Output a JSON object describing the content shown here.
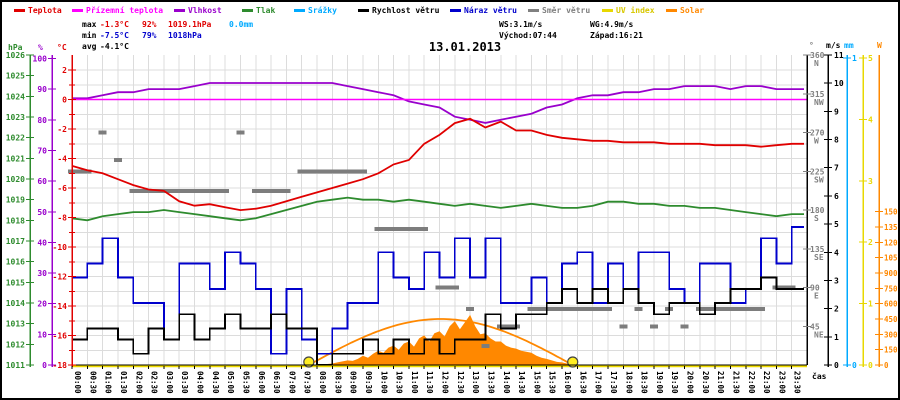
{
  "title": "13.01.2013",
  "legend": [
    {
      "id": "temperature",
      "label": "Teplota",
      "color": "#e00000"
    },
    {
      "id": "ground-temperature",
      "label": "Přízemní teplota",
      "color": "#ff00ff"
    },
    {
      "id": "humidity",
      "label": "Vlhkost",
      "color": "#9900cc"
    },
    {
      "id": "pressure",
      "label": "Tlak",
      "color": "#2e8b2e"
    },
    {
      "id": "precipitation",
      "label": "Srážky",
      "color": "#00aaff"
    },
    {
      "id": "wind-speed",
      "label": "Rychlost větru",
      "color": "#000000"
    },
    {
      "id": "wind-gust",
      "label": "Náraz větru",
      "color": "#0000cc"
    },
    {
      "id": "wind-direction",
      "label": "Směr větru",
      "color": "#808080"
    },
    {
      "id": "uv-index",
      "label": "UV index",
      "color": "#e8d800"
    },
    {
      "id": "solar",
      "label": "Solar",
      "color": "#ff8800"
    }
  ],
  "stats": {
    "max_label": "max",
    "max_temp": "-1.3°C",
    "max_hum": "92%",
    "max_pres": "1019.1hPa",
    "rain_total": "0.0mm",
    "min_label": "min",
    "min_temp": "-7.5°C",
    "min_hum": "79%",
    "min_pres": "1018hPa",
    "avg_label": "avg",
    "avg_temp": "-4.1°C",
    "ws": "WS:3.1m/s",
    "wg": "WG:4.9m/s",
    "sunrise": "Východ:07:44",
    "sunset": "Západ:16:21"
  },
  "xaxis_label": "čas",
  "axes": {
    "pressure": {
      "unit": "hPa",
      "color": "#2e8b2e",
      "min": 1011,
      "max": 1026,
      "step": 1
    },
    "humidity": {
      "unit": "%",
      "color": "#9900cc",
      "min": 0,
      "max": 100,
      "step": 10
    },
    "temperature": {
      "unit": "°C",
      "color": "#e00000",
      "min": -18,
      "max": 2,
      "label_step": 2
    },
    "direction": {
      "unit": "°",
      "color": "#808080",
      "ticks": [
        {
          "deg": 360,
          "name": "N"
        },
        {
          "deg": 315,
          "name": "NW"
        },
        {
          "deg": 270,
          "name": "W"
        },
        {
          "deg": 225,
          "name": "SW"
        },
        {
          "deg": 180,
          "name": "S"
        },
        {
          "deg": 135,
          "name": "SE"
        },
        {
          "deg": 90,
          "name": "E"
        },
        {
          "deg": 45,
          "name": "NE"
        }
      ]
    },
    "wind": {
      "unit": "m/s",
      "color": "#000000",
      "min": 0,
      "max": 11,
      "step": 1
    },
    "rain": {
      "unit": "mm",
      "color": "#00aaff",
      "min": 0,
      "max": 1,
      "step": 1
    },
    "uv": {
      "unit": "",
      "color": "#e8d800",
      "min": 0,
      "max": 5,
      "step": 1
    },
    "solar": {
      "unit": "W",
      "color": "#ff8800",
      "min": 0,
      "max": 1500,
      "step": 150
    }
  },
  "chart_data": {
    "type": "line",
    "x": [
      "00:00",
      "00:30",
      "01:00",
      "01:30",
      "02:00",
      "02:30",
      "03:00",
      "03:30",
      "04:00",
      "04:30",
      "05:00",
      "05:30",
      "06:00",
      "06:30",
      "07:00",
      "07:30",
      "08:00",
      "08:30",
      "09:00",
      "09:30",
      "10:00",
      "10:30",
      "11:00",
      "11:30",
      "12:00",
      "12:30",
      "13:00",
      "13:30",
      "14:00",
      "14:30",
      "15:00",
      "15:30",
      "16:00",
      "16:30",
      "17:00",
      "17:30",
      "18:00",
      "18:30",
      "19:00",
      "19:30",
      "20:00",
      "20:30",
      "21:00",
      "21:30",
      "22:00",
      "22:30",
      "23:00",
      "23:30"
    ],
    "series": [
      {
        "name": "Teplota",
        "unit": "°C",
        "values": [
          -4.5,
          -4.8,
          -5.0,
          -5.4,
          -5.8,
          -6.1,
          -6.2,
          -6.9,
          -7.2,
          -7.1,
          -7.3,
          -7.5,
          -7.4,
          -7.2,
          -6.9,
          -6.6,
          -6.3,
          -6.0,
          -5.7,
          -5.4,
          -5.0,
          -4.4,
          -4.1,
          -3.0,
          -2.4,
          -1.6,
          -1.3,
          -1.9,
          -1.5,
          -2.1,
          -2.1,
          -2.4,
          -2.6,
          -2.7,
          -2.8,
          -2.8,
          -2.9,
          -2.9,
          -2.9,
          -3.0,
          -3.0,
          -3.0,
          -3.1,
          -3.1,
          -3.1,
          -3.2,
          -3.1,
          -3.0
        ]
      },
      {
        "name": "Přízemní teplota",
        "unit": "°C",
        "constant": 0.0
      },
      {
        "name": "Vlhkost",
        "unit": "%",
        "values": [
          87,
          87,
          88,
          89,
          89,
          90,
          90,
          90,
          91,
          92,
          92,
          92,
          92,
          92,
          92,
          92,
          92,
          92,
          91,
          90,
          89,
          88,
          86,
          85,
          84,
          81,
          80,
          79,
          80,
          81,
          82,
          84,
          85,
          87,
          88,
          88,
          89,
          89,
          90,
          90,
          91,
          91,
          91,
          90,
          91,
          91,
          90,
          90
        ]
      },
      {
        "name": "Tlak",
        "unit": "hPa",
        "values": [
          1018.1,
          1018.0,
          1018.2,
          1018.3,
          1018.4,
          1018.4,
          1018.5,
          1018.4,
          1018.3,
          1018.2,
          1018.1,
          1018.0,
          1018.1,
          1018.3,
          1018.5,
          1018.7,
          1018.9,
          1019.0,
          1019.1,
          1019.0,
          1019.0,
          1018.9,
          1019.0,
          1018.9,
          1018.8,
          1018.7,
          1018.8,
          1018.7,
          1018.6,
          1018.7,
          1018.8,
          1018.7,
          1018.6,
          1018.6,
          1018.7,
          1018.9,
          1018.9,
          1018.8,
          1018.8,
          1018.7,
          1018.7,
          1018.6,
          1018.6,
          1018.5,
          1018.4,
          1018.3,
          1018.2,
          1018.3
        ]
      },
      {
        "name": "Srážky",
        "unit": "mm",
        "constant": 0.0
      },
      {
        "name": "Rychlost větru",
        "unit": "m/s",
        "values": [
          0.9,
          1.3,
          1.3,
          0.9,
          0.4,
          1.3,
          0.9,
          1.8,
          0.9,
          1.3,
          1.8,
          1.3,
          1.3,
          1.8,
          1.3,
          1.3,
          0.0,
          0.4,
          0.4,
          0.9,
          0.4,
          0.9,
          0.4,
          0.9,
          0.4,
          0.9,
          0.9,
          1.8,
          1.3,
          1.8,
          1.8,
          2.2,
          2.7,
          2.2,
          2.7,
          2.2,
          2.7,
          2.2,
          1.8,
          2.2,
          2.2,
          1.8,
          2.2,
          2.7,
          2.7,
          3.1,
          2.7,
          2.7
        ]
      },
      {
        "name": "Náraz větru",
        "unit": "m/s",
        "values": [
          3.1,
          3.6,
          4.5,
          3.1,
          2.2,
          2.2,
          0.9,
          3.6,
          3.6,
          2.7,
          4.0,
          3.6,
          2.7,
          0.4,
          2.7,
          0.9,
          0.4,
          1.3,
          2.2,
          2.2,
          4.0,
          3.1,
          2.7,
          4.0,
          3.1,
          4.5,
          3.1,
          4.5,
          2.2,
          2.2,
          3.1,
          2.2,
          3.6,
          4.0,
          2.2,
          3.6,
          2.7,
          4.0,
          4.0,
          2.7,
          2.2,
          3.6,
          3.6,
          2.2,
          2.7,
          4.5,
          3.6,
          4.9
        ]
      },
      {
        "name": "Směr větru",
        "unit": "°",
        "values": [
          225,
          225,
          270,
          238,
          202,
          202,
          202,
          202,
          202,
          202,
          202,
          270,
          202,
          202,
          202,
          225,
          225,
          225,
          225,
          225,
          158,
          158,
          158,
          158,
          90,
          90,
          65,
          22,
          45,
          45,
          65,
          65,
          65,
          65,
          65,
          65,
          45,
          65,
          45,
          65,
          45,
          65,
          65,
          65,
          65,
          65,
          90,
          90
        ]
      },
      {
        "name": "UV index",
        "unit": "",
        "constant": 0
      }
    ],
    "solar_measured_w": {
      "start": "08:00",
      "step_min": 10,
      "values": [
        0,
        5,
        10,
        15,
        25,
        35,
        45,
        40,
        60,
        90,
        70,
        110,
        140,
        120,
        170,
        190,
        150,
        210,
        230,
        180,
        260,
        290,
        230,
        310,
        330,
        280,
        380,
        430,
        350,
        420,
        490,
        380,
        300,
        310,
        260,
        230,
        230,
        190,
        170,
        160,
        140,
        130,
        120,
        90,
        70,
        60,
        45,
        30,
        25,
        15,
        8,
        0
      ]
    },
    "sun": {
      "sunrise": "07:44",
      "sunset": "16:21",
      "solar_theoretical_peak_w": 450
    },
    "title": "13.01.2013",
    "xlabel": "čas",
    "grid": true,
    "legend_position": "top"
  }
}
